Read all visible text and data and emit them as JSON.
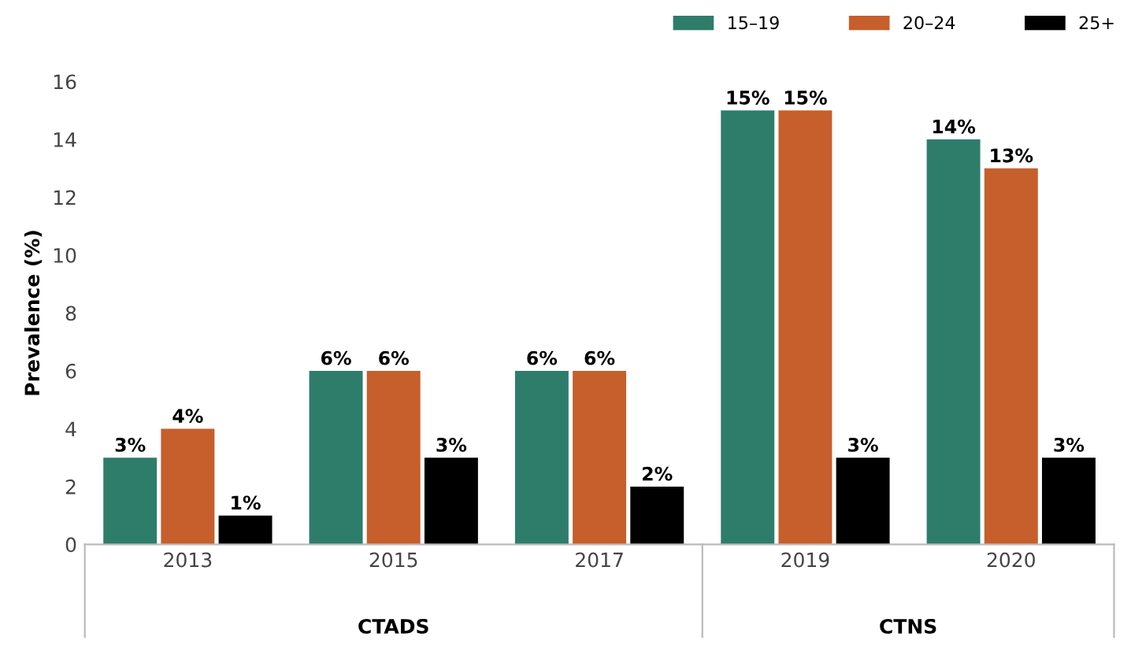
{
  "chart_data": {
    "type": "bar",
    "ylabel": "Prevalence (%)",
    "categories": [
      "2013",
      "2015",
      "2017",
      "2019",
      "2020"
    ],
    "series": [
      {
        "name": "15–19",
        "color": "#2e7d6b",
        "values": [
          3,
          6,
          6,
          15,
          14
        ],
        "value_labels": [
          "3%",
          "6%",
          "6%",
          "15%",
          "14%"
        ]
      },
      {
        "name": "20–24",
        "color": "#c65f2c",
        "values": [
          4,
          6,
          6,
          15,
          13
        ],
        "value_labels": [
          "4%",
          "6%",
          "6%",
          "15%",
          "13%"
        ]
      },
      {
        "name": "25+",
        "color": "#000000",
        "values": [
          1,
          3,
          2,
          3,
          3
        ],
        "value_labels": [
          "1%",
          "3%",
          "2%",
          "3%",
          "3%"
        ]
      }
    ],
    "ylim": [
      0,
      16
    ],
    "yticks": [
      0,
      2,
      4,
      6,
      8,
      10,
      12,
      14,
      16
    ],
    "grid": false,
    "legend": "top right",
    "annotations": [
      "CTADS",
      "CTNS"
    ]
  }
}
